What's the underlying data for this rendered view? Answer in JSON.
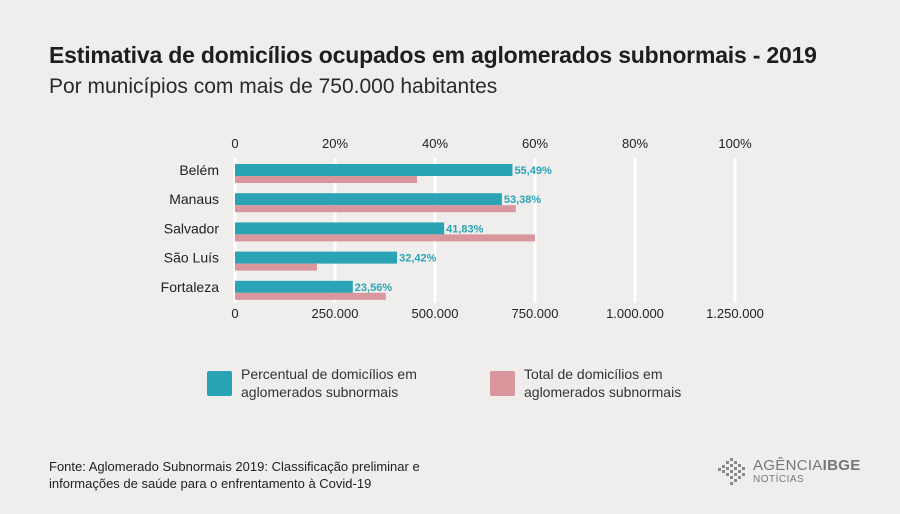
{
  "title": "Estimativa de domicílios ocupados em aglomerados subnormais - 2019",
  "subtitle": "Por municípios com mais de 750.000 habitantes",
  "chart_data": {
    "type": "bar",
    "orientation": "horizontal",
    "categories": [
      "Belém",
      "Manaus",
      "Salvador",
      "São Luís",
      "Fortaleza"
    ],
    "series": [
      {
        "name": "Percentual de domicílios em aglomerados subnormais",
        "values": [
          55.49,
          53.38,
          41.83,
          32.42,
          23.56
        ],
        "labels": [
          "55,49%",
          "53,38%",
          "41,83%",
          "32,42%",
          "23,56%"
        ],
        "axis": "top",
        "color": "#2aa4b5"
      },
      {
        "name": "Total de domicílios em aglomerados subnormais",
        "values": [
          455000,
          702000,
          750000,
          205000,
          377000
        ],
        "axis": "bottom",
        "color": "#d9969c"
      }
    ],
    "top_axis": {
      "ticks": [
        "0",
        "20%",
        "40%",
        "60%",
        "80%",
        "100%"
      ],
      "range": [
        0,
        100
      ]
    },
    "bottom_axis": {
      "ticks": [
        "0",
        "250.000",
        "500.000",
        "750.000",
        "1.000.000",
        "1.250.000"
      ],
      "range": [
        0,
        1250000
      ]
    },
    "grid": true,
    "legend_position": "bottom"
  },
  "legend": [
    {
      "label": "Percentual de domicílios em aglomerados subnormais",
      "color": "#2aa4b5"
    },
    {
      "label": "Total de domicílios em aglomerados subnormais",
      "color": "#d9969c"
    }
  ],
  "source": "Fonte: Aglomerado Subnormais 2019: Classificação preliminar e informações de saúde para o enfrentamento à Covid-19",
  "brand": {
    "name_light": "AGÊNCIA",
    "name_bold": "IBGE",
    "sub": "NOTÍCIAS",
    "color": "#7a7a7a"
  }
}
